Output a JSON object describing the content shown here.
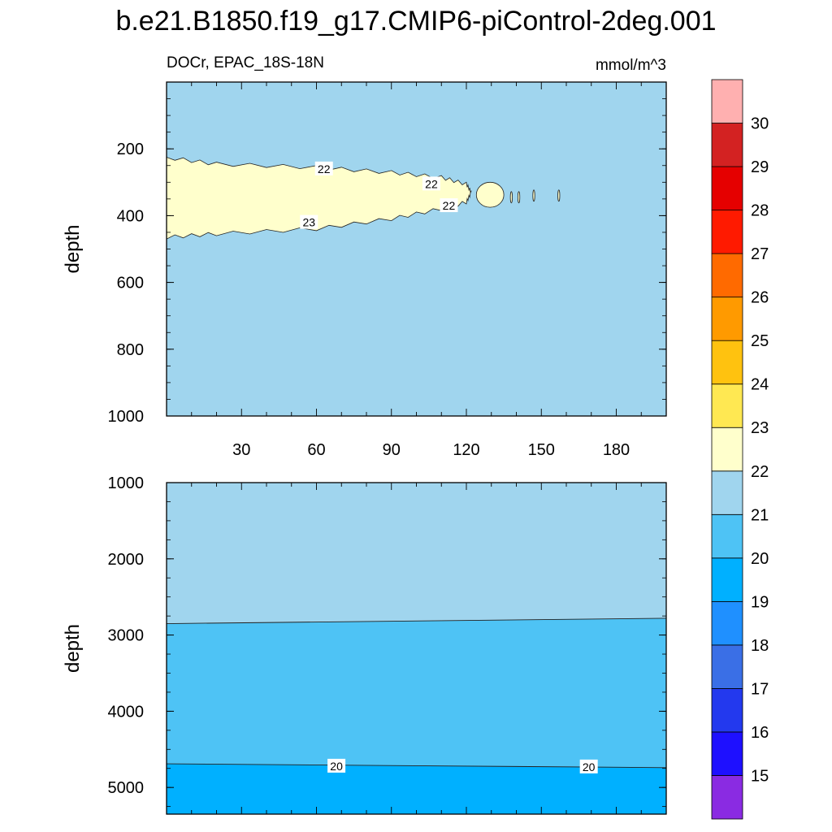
{
  "chart_data": {
    "type": "contour",
    "title": "b.e21.B1850.f19_g17.CMIP6-piControl-2deg.001",
    "variable_label": "DOCr, EPAC_18S-18N",
    "units": "mmol/m^3",
    "colorbar": {
      "levels": [
        15,
        16,
        17,
        18,
        19,
        20,
        21,
        22,
        23,
        24,
        25,
        26,
        27,
        28,
        29,
        30
      ],
      "tick_labels": [
        "15",
        "16",
        "17",
        "18",
        "19",
        "20",
        "21",
        "22",
        "23",
        "24",
        "25",
        "26",
        "27",
        "28",
        "29",
        "30"
      ],
      "colors": [
        "#8a2be2",
        "#1e10ff",
        "#2339ee",
        "#3a6fe6",
        "#1f90ff",
        "#00b0ff",
        "#4ec3f5",
        "#a0d5ee",
        "#ffffcc",
        "#ffe852",
        "#ffc20f",
        "#ff9a00",
        "#ff6a00",
        "#ff1a00",
        "#e50000",
        "#d32222",
        "#ffb0b0"
      ]
    },
    "panels": [
      {
        "name": "upper",
        "ylabel": "depth",
        "ylim": [
          0,
          1000
        ],
        "y_inverted": true,
        "yticks": [
          200,
          400,
          600,
          800,
          1000
        ],
        "xlim": [
          0,
          200
        ],
        "xticks": [
          30,
          60,
          90,
          120,
          150,
          180
        ],
        "background_level": "21-22",
        "features": [
          {
            "level": "22-23",
            "description": "shallow high-DOC tongue",
            "upper_boundary": [
              [
                0,
                225
              ],
              [
                20,
                245
              ],
              [
                60,
                255
              ],
              [
                90,
                270
              ],
              [
                110,
                285
              ],
              [
                120,
                305
              ],
              [
                122,
                330
              ]
            ],
            "lower_boundary": [
              [
                0,
                465
              ],
              [
                20,
                455
              ],
              [
                60,
                440
              ],
              [
                90,
                410
              ],
              [
                110,
                380
              ],
              [
                120,
                360
              ],
              [
                122,
                330
              ]
            ],
            "small_patch": {
              "x": [
                124,
                135
              ],
              "depth": [
                300,
                375
              ]
            },
            "specks": [
              [
                138,
                345
              ],
              [
                141,
                345
              ],
              [
                147,
                340
              ],
              [
                157,
                340
              ]
            ]
          }
        ],
        "contour_labels": [
          {
            "text": "22",
            "x": 63,
            "depth": 260
          },
          {
            "text": "22",
            "x": 106,
            "depth": 305
          },
          {
            "text": "23",
            "x": 57,
            "depth": 420
          },
          {
            "text": "22",
            "x": 113,
            "depth": 370
          }
        ]
      },
      {
        "name": "lower",
        "ylabel": "depth",
        "ylim": [
          1000,
          5350
        ],
        "y_inverted": true,
        "yticks": [
          1000,
          2000,
          3000,
          4000,
          5000
        ],
        "xlim": [
          0,
          200
        ],
        "bands": [
          {
            "level": "21-22",
            "from_depth": 1000,
            "to_depth_left": 2850,
            "to_depth_right": 2780
          },
          {
            "level": "20-21",
            "from_depth_left": 2850,
            "from_depth_right": 2780,
            "to_depth_left": 4690,
            "to_depth_right": 4740
          },
          {
            "level": "19-20",
            "from_depth_left": 4690,
            "from_depth_right": 4740,
            "to_depth": 5350
          }
        ],
        "contour_labels": [
          {
            "text": "20",
            "x": 68,
            "depth": 4720
          },
          {
            "text": "20",
            "x": 169,
            "depth": 4730
          }
        ]
      }
    ]
  }
}
